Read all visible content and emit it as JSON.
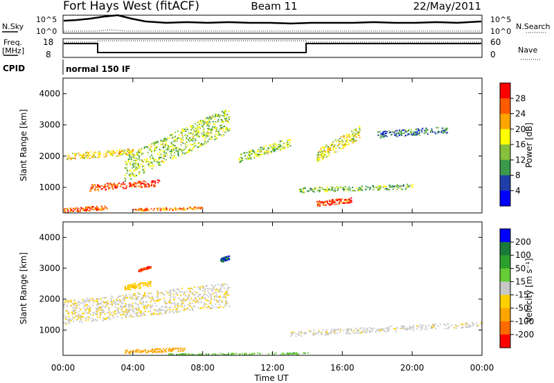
{
  "header": {
    "station": "Fort Hays West (fitACF)",
    "beam": "Beam 11",
    "date": "22/May/2011"
  },
  "top_panels": {
    "nsky_label": "N.Sky",
    "nsearch_label": "N.Search",
    "noise_ticks": [
      "10^5",
      "10^0"
    ],
    "noise_ticks_right": [
      "10^5",
      "10^0"
    ],
    "freq_label": "Freq.",
    "freq_unit": "[MHz]",
    "freq_ticks": [
      "18",
      "8"
    ],
    "nave_label": "Nave",
    "nave_ticks": [
      "60",
      "0"
    ],
    "cpid_label": "CPID",
    "cpid_value": "normal 150 IF"
  },
  "colorbars": {
    "power": {
      "title": "Power [dB]",
      "ticks": [
        "28",
        "24",
        "20",
        "16",
        "12",
        "8",
        "4"
      ],
      "colors": [
        "#0000ff",
        "#1f3fa8",
        "#3a9a4a",
        "#86c03c",
        "#ffff00",
        "#ffa500",
        "#ff5a00",
        "#ff0000"
      ]
    },
    "velocity": {
      "title": "Velocity [m s⁻¹]",
      "ticks": [
        "200",
        "100",
        "50",
        "15",
        "-15",
        "-50",
        "-100",
        "-200"
      ],
      "colors": [
        "#ff0000",
        "#ff6a00",
        "#ffa500",
        "#ffd000",
        "#c8c8c8",
        "#66cc33",
        "#2ca02c",
        "#1a7a3a",
        "#0000ff"
      ]
    }
  },
  "axes": {
    "ylabel": "Slant Range [km]",
    "xlabel": "Time UT",
    "x_ticks": [
      "00:00",
      "04:00",
      "08:00",
      "12:00",
      "16:00",
      "20:00",
      "00:00"
    ],
    "y_ticks": [
      "1000",
      "2000",
      "3000",
      "4000"
    ]
  },
  "chart_data": [
    {
      "type": "heatmap",
      "name": "Power",
      "x_range_hours": [
        0,
        24
      ],
      "y_range_km": [
        180,
        4500
      ],
      "z_range_db": [
        0,
        30
      ],
      "features": [
        {
          "t": [
            0.2,
            4.0
          ],
          "range_km": [
            1900,
            2500
          ],
          "db": 18
        },
        {
          "t": [
            1.5,
            5.5
          ],
          "range_km": [
            900,
            1500
          ],
          "db": 26
        },
        {
          "t": [
            3.5,
            9.5
          ],
          "range_km": [
            1200,
            3600
          ],
          "db": 14
        },
        {
          "t": [
            0.0,
            2.5
          ],
          "range_km": [
            200,
            600
          ],
          "db": 24
        },
        {
          "t": [
            4.0,
            8.0
          ],
          "range_km": [
            250,
            500
          ],
          "db": 22
        },
        {
          "t": [
            10.0,
            13.0
          ],
          "range_km": [
            1800,
            2600
          ],
          "db": 14
        },
        {
          "t": [
            13.5,
            20.0
          ],
          "range_km": [
            850,
            1300
          ],
          "db": 12
        },
        {
          "t": [
            14.5,
            16.5
          ],
          "range_km": [
            400,
            900
          ],
          "db": 26
        },
        {
          "t": [
            14.5,
            17.0
          ],
          "range_km": [
            1800,
            3000
          ],
          "db": 16
        },
        {
          "t": [
            18.0,
            22.0
          ],
          "range_km": [
            2600,
            3200
          ],
          "db": 8
        }
      ]
    },
    {
      "type": "heatmap",
      "name": "Velocity",
      "x_range_hours": [
        0,
        24
      ],
      "y_range_km": [
        180,
        4500
      ],
      "z_range_ms": [
        -200,
        200
      ],
      "features": [
        {
          "t": [
            0.0,
            9.5
          ],
          "range_km": [
            1200,
            3400
          ],
          "v": -10
        },
        {
          "t": [
            3.5,
            5.0
          ],
          "range_km": [
            2300,
            2800
          ],
          "v": -40
        },
        {
          "t": [
            4.3,
            5.0
          ],
          "range_km": [
            2900,
            3100
          ],
          "v": -200
        },
        {
          "t": [
            3.5,
            7.0
          ],
          "range_km": [
            250,
            600
          ],
          "v": -80
        },
        {
          "t": [
            6.0,
            14.0
          ],
          "range_km": [
            200,
            350
          ],
          "v": 40
        },
        {
          "t": [
            13.0,
            24.0
          ],
          "range_km": [
            800,
            1300
          ],
          "v": -5
        },
        {
          "t": [
            9.0,
            9.5
          ],
          "range_km": [
            3200,
            3600
          ],
          "v": 200
        }
      ]
    }
  ]
}
